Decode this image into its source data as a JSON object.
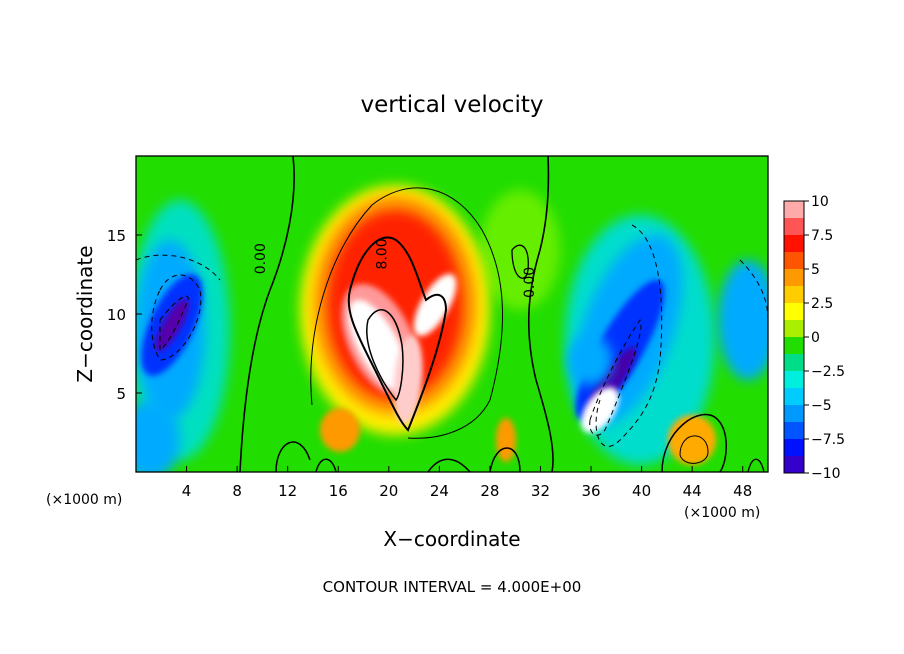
{
  "chart_data": {
    "type": "heatmap",
    "title": "vertical velocity",
    "xlabel": "X−coordinate",
    "ylabel": "Z−coordinate",
    "xlim": [
      0,
      50
    ],
    "ylim": [
      0,
      20
    ],
    "x_ticks": [
      4,
      8,
      12,
      16,
      20,
      24,
      28,
      32,
      36,
      40,
      44,
      48
    ],
    "y_ticks": [
      5,
      10,
      15
    ],
    "x_unit_left": "(×1000 m)",
    "x_unit_right": "(×1000 m)",
    "colorbar": {
      "min": -10,
      "max": 10,
      "ticks": [
        10,
        7.5,
        5,
        2.5,
        0,
        -2.5,
        -5,
        -7.5,
        -10
      ],
      "tick_labels": [
        "10",
        "7.5",
        "5",
        "2.5",
        "0",
        "−2.5",
        "−5",
        "−7.5",
        "−10"
      ]
    },
    "contour_labels": [
      {
        "text": "0.00",
        "x": 10.2,
        "z": 13.5
      },
      {
        "text": "8.00",
        "x": 19.8,
        "z": 13.8
      },
      {
        "text": "0.00",
        "x": 31.5,
        "z": 12.0
      }
    ],
    "features": [
      {
        "kind": "updraft",
        "x_center": 21,
        "z_center": 8,
        "peak": 10
      },
      {
        "kind": "downdraft",
        "x_center": 4,
        "z_center": 9.5,
        "peak": -10
      },
      {
        "kind": "downdraft",
        "x_center": 38,
        "z_center": 6.5,
        "peak": -10
      },
      {
        "kind": "updraft",
        "x_center": 37,
        "z_center": 4.5,
        "peak": 10
      },
      {
        "kind": "updraft",
        "x_center": 44.5,
        "z_center": 2,
        "peak": 5
      }
    ],
    "footer": "CONTOUR INTERVAL = 4.000E+00"
  }
}
